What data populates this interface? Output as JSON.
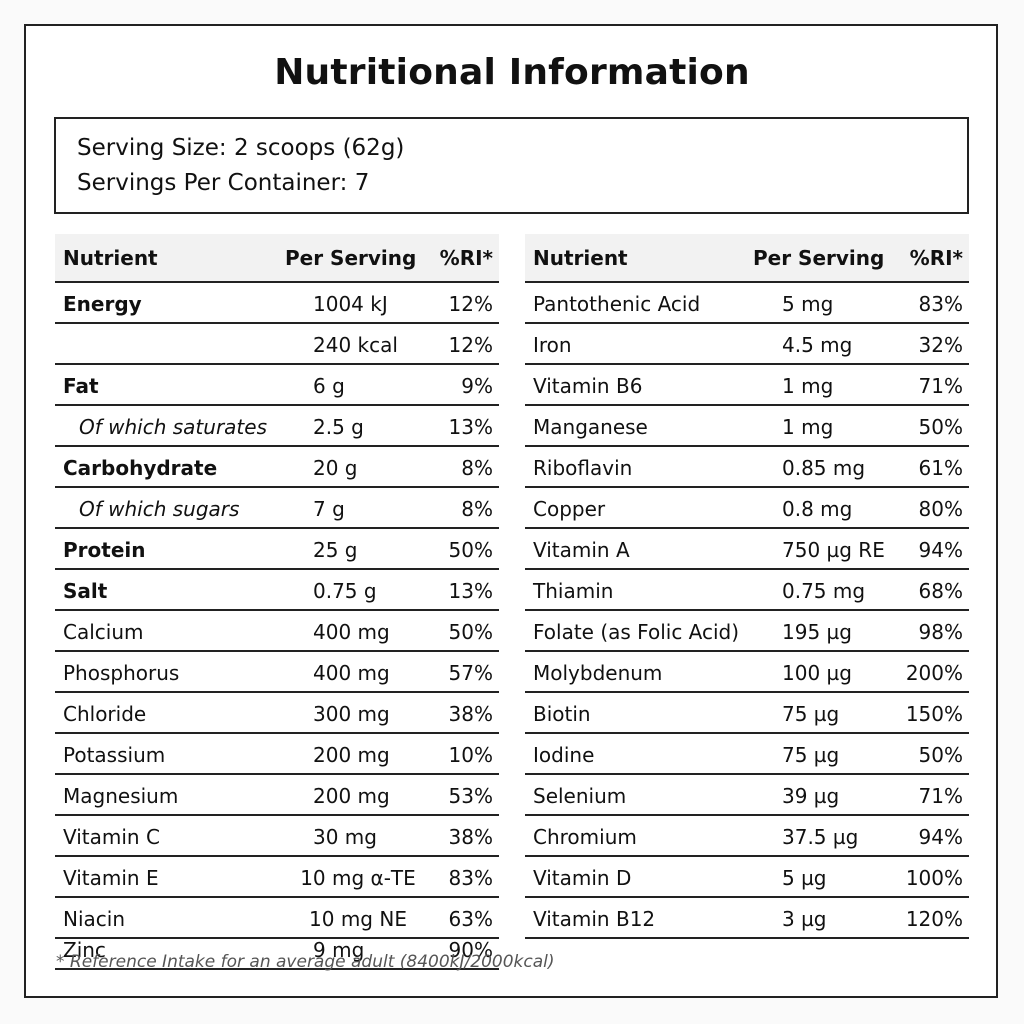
{
  "title": "Nutritional Information",
  "serving": {
    "size": "Serving Size: 2 scoops (62g)",
    "per_container": "Servings Per Container: 7"
  },
  "headers": {
    "nutrient": "Nutrient",
    "per_serving": "Per Serving",
    "ri": "%RI*"
  },
  "left_rows": [
    {
      "name": "Energy",
      "value": "1004 kJ",
      "ri": "12%",
      "style": "bold"
    },
    {
      "name": "",
      "value": "240 kcal",
      "ri": "12%",
      "style": "plain"
    },
    {
      "name": "Fat",
      "value": "6 g",
      "ri": "9%",
      "style": "bold"
    },
    {
      "name": "Of which saturates",
      "value": "2.5 g",
      "ri": "13%",
      "style": "sub"
    },
    {
      "name": "Carbohydrate",
      "value": "20 g",
      "ri": "8%",
      "style": "bold"
    },
    {
      "name": "Of which sugars",
      "value": "7 g",
      "ri": "8%",
      "style": "sub"
    },
    {
      "name": "Protein",
      "value": "25 g",
      "ri": "50%",
      "style": "bold"
    },
    {
      "name": "Salt",
      "value": "0.75 g",
      "ri": "13%",
      "style": "bold"
    },
    {
      "name": "Calcium",
      "value": "400 mg",
      "ri": "50%",
      "style": "plain"
    },
    {
      "name": "Phosphorus",
      "value": "400 mg",
      "ri": "57%",
      "style": "plain"
    },
    {
      "name": "Chloride",
      "value": "300 mg",
      "ri": "38%",
      "style": "plain"
    },
    {
      "name": "Potassium",
      "value": "200 mg",
      "ri": "10%",
      "style": "plain"
    },
    {
      "name": "Magnesium",
      "value": "200 mg",
      "ri": "53%",
      "style": "plain"
    },
    {
      "name": "Vitamin C",
      "value": "30 mg",
      "ri": "38%",
      "style": "plain"
    },
    {
      "name": "Vitamin E",
      "value": "10 mg α-TE",
      "ri": "83%",
      "style": "plain"
    },
    {
      "name": "Niacin",
      "value": "10 mg NE",
      "ri": "63%",
      "style": "plain"
    }
  ],
  "zinc_row": {
    "name": "Zinc",
    "value": "9 mg",
    "ri": "90%"
  },
  "right_rows": [
    {
      "name": "Pantothenic Acid",
      "value": "5 mg",
      "ri": "83%"
    },
    {
      "name": "Iron",
      "value": "4.5 mg",
      "ri": "32%"
    },
    {
      "name": "Vitamin B6",
      "value": "1 mg",
      "ri": "71%"
    },
    {
      "name": "Manganese",
      "value": "1 mg",
      "ri": "50%"
    },
    {
      "name": "Riboflavin",
      "value": "0.85 mg",
      "ri": "61%"
    },
    {
      "name": "Copper",
      "value": "0.8 mg",
      "ri": "80%"
    },
    {
      "name": "Vitamin A",
      "value": "750 µg RE",
      "ri": "94%"
    },
    {
      "name": "Thiamin",
      "value": "0.75 mg",
      "ri": "68%"
    },
    {
      "name": "Folate (as Folic Acid)",
      "value": "195 µg",
      "ri": "98%"
    },
    {
      "name": "Molybdenum",
      "value": "100 µg",
      "ri": "200%"
    },
    {
      "name": "Biotin",
      "value": "75 µg",
      "ri": "150%"
    },
    {
      "name": "Iodine",
      "value": "75 µg",
      "ri": "50%"
    },
    {
      "name": "Selenium",
      "value": "39 µg",
      "ri": "71%"
    },
    {
      "name": "Chromium",
      "value": "37.5 µg",
      "ri": "94%"
    },
    {
      "name": "Vitamin D",
      "value": "5 µg",
      "ri": "100%"
    },
    {
      "name": "Vitamin B12",
      "value": "3 µg",
      "ri": "120%"
    }
  ],
  "footnote": "* Reference Intake for an average adult (8400kJ/2000kcal)"
}
